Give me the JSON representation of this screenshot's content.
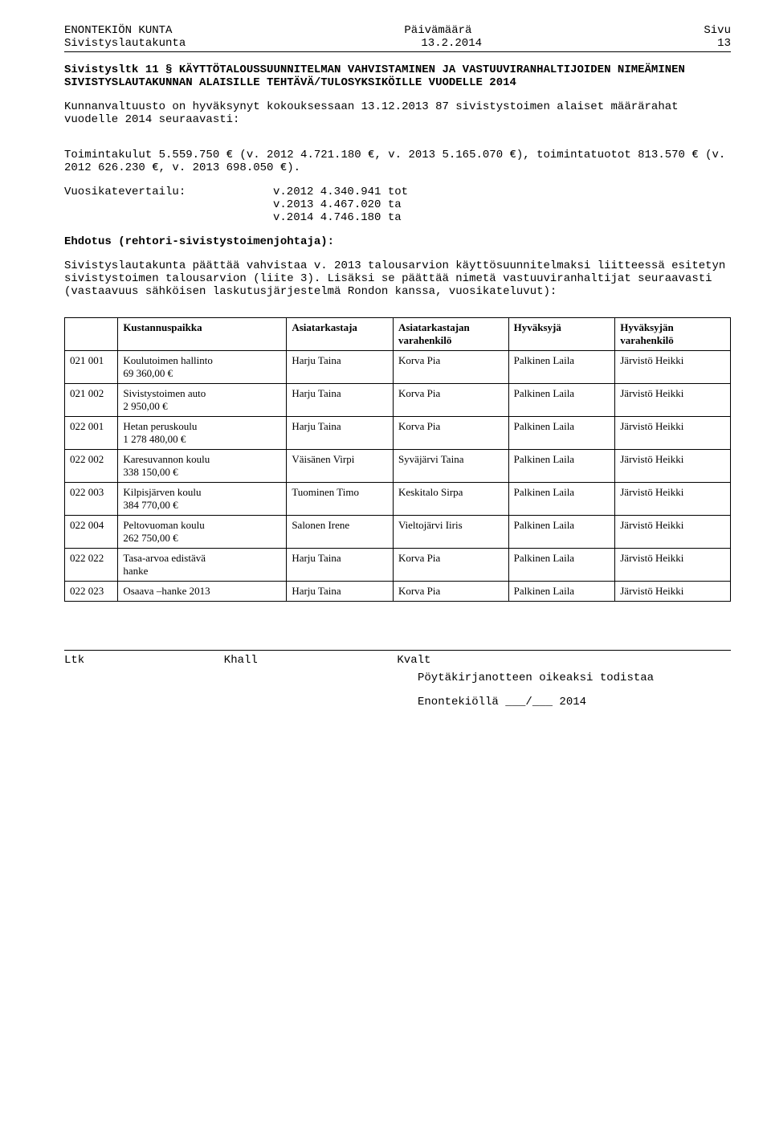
{
  "header": {
    "org": "ENONTEKIÖN KUNTA",
    "date_label": "Päivämäärä",
    "page_label": "Sivu",
    "board": "Sivistyslautakunta",
    "date": "13.2.2014",
    "page": "13"
  },
  "title": "Sivistysltk 11 § KÄYTTÖTALOUSSUUNNITELMAN VAHVISTAMINEN JA VASTUUVIRANHALTIJOIDEN NIMEÄMINEN SIVISTYSLAUTAKUNNAN ALAISILLE TEHTÄVÄ/TULOSYKSIKÖILLE VUODELLE 2014",
  "para1": "Kunnanvaltuusto on hyväksynyt kokouksessaan 13.12.2013 87 sivistystoimen alaiset määrärahat vuodelle 2014 seuraavasti:",
  "para2": "Toimintakulut 5.559.750 € (v. 2012 4.721.180 €, v. 2013 5.165.070 €), toimintatuotot 813.570 € (v. 2012 626.230 €, v. 2013 698.050 €).",
  "vertailu_label": "Vuosikatevertailu:",
  "vertailu": {
    "l1": "v.2012 4.340.941 tot",
    "l2": "v.2013 4.467.020 ta",
    "l3": "v.2014 4.746.180 ta"
  },
  "ehdotus_label": "Ehdotus (rehtori-sivistystoimenjohtaja):",
  "ehdotus_body": "Sivistyslautakunta päättää vahvistaa v. 2013 talousarvion käyttösuunnitelmaksi liitteessä esitetyn sivistystoimen talousarvion (liite 3). Lisäksi se päättää nimetä vastuuviranhaltijat seuraavasti (vastaavuus  sähköisen laskutusjärjestelmä Rondon kanssa, vuosikateluvut):",
  "table": {
    "columns": [
      "",
      "Kustannuspaikka",
      "Asiatarkastaja",
      "Asiatarkastajan varahenkilö",
      "Hyväksyjä",
      "Hyväksyjän varahenkilö"
    ],
    "col_widths": [
      "60px",
      "190px",
      "120px",
      "130px",
      "120px",
      "130px"
    ],
    "rows": [
      {
        "code": "021 001",
        "name": "Koulutoimen hallinto",
        "amount": "69 360,00 €",
        "c3": "Harju Taina",
        "c4": "Korva Pia",
        "c5": "Palkinen Laila",
        "c6": "Järvistö Heikki"
      },
      {
        "code": "021 002",
        "name": "Sivistystoimen auto",
        "amount": "2 950,00 €",
        "c3": "Harju Taina",
        "c4": "Korva Pia",
        "c5": "Palkinen Laila",
        "c6": "Järvistö Heikki"
      },
      {
        "code": "022 001",
        "name": "Hetan peruskoulu",
        "amount": "1 278  480,00 €",
        "c3": "Harju Taina",
        "c4": "Korva Pia",
        "c5": "Palkinen Laila",
        "c6": "Järvistö Heikki"
      },
      {
        "code": "022 002",
        "name": "Karesuvannon koulu",
        "amount": "338 150,00 €",
        "c3": "Väisänen Virpi",
        "c4": "Syväjärvi Taina",
        "c5": "Palkinen Laila",
        "c6": "Järvistö Heikki"
      },
      {
        "code": "022 003",
        "name": "Kilpisjärven koulu",
        "amount": "384 770,00 €",
        "c3": "Tuominen Timo",
        "c4": "Keskitalo Sirpa",
        "c5": "Palkinen Laila",
        "c6": "Järvistö Heikki"
      },
      {
        "code": "022 004",
        "name": "Peltovuoman koulu",
        "amount": "262 750,00 €",
        "c3": "Salonen Irene",
        "c4": "Vieltojärvi Iiris",
        "c5": "Palkinen Laila",
        "c6": "Järvistö Heikki"
      },
      {
        "code": "022 022",
        "name": "Tasa-arvoa edistävä",
        "amount": " hanke",
        "c3": "Harju Taina",
        "c4": "Korva Pia",
        "c5": "Palkinen Laila",
        "c6": "Järvistö  Heikki"
      },
      {
        "code": "022 023",
        "name": "Osaava –hanke  2013",
        "amount": "",
        "c3": "Harju Taina",
        "c4": "Korva Pia",
        "c5": "Palkinen Laila",
        "c6": "Järvistö Heikki"
      }
    ]
  },
  "footer": {
    "ltk": "Ltk",
    "khall": "Khall",
    "kvalt": "Kvalt",
    "line1": "Pöytäkirjanotteen oikeaksi todistaa",
    "line2": "Enontekiöllä ___/___ 2014"
  }
}
